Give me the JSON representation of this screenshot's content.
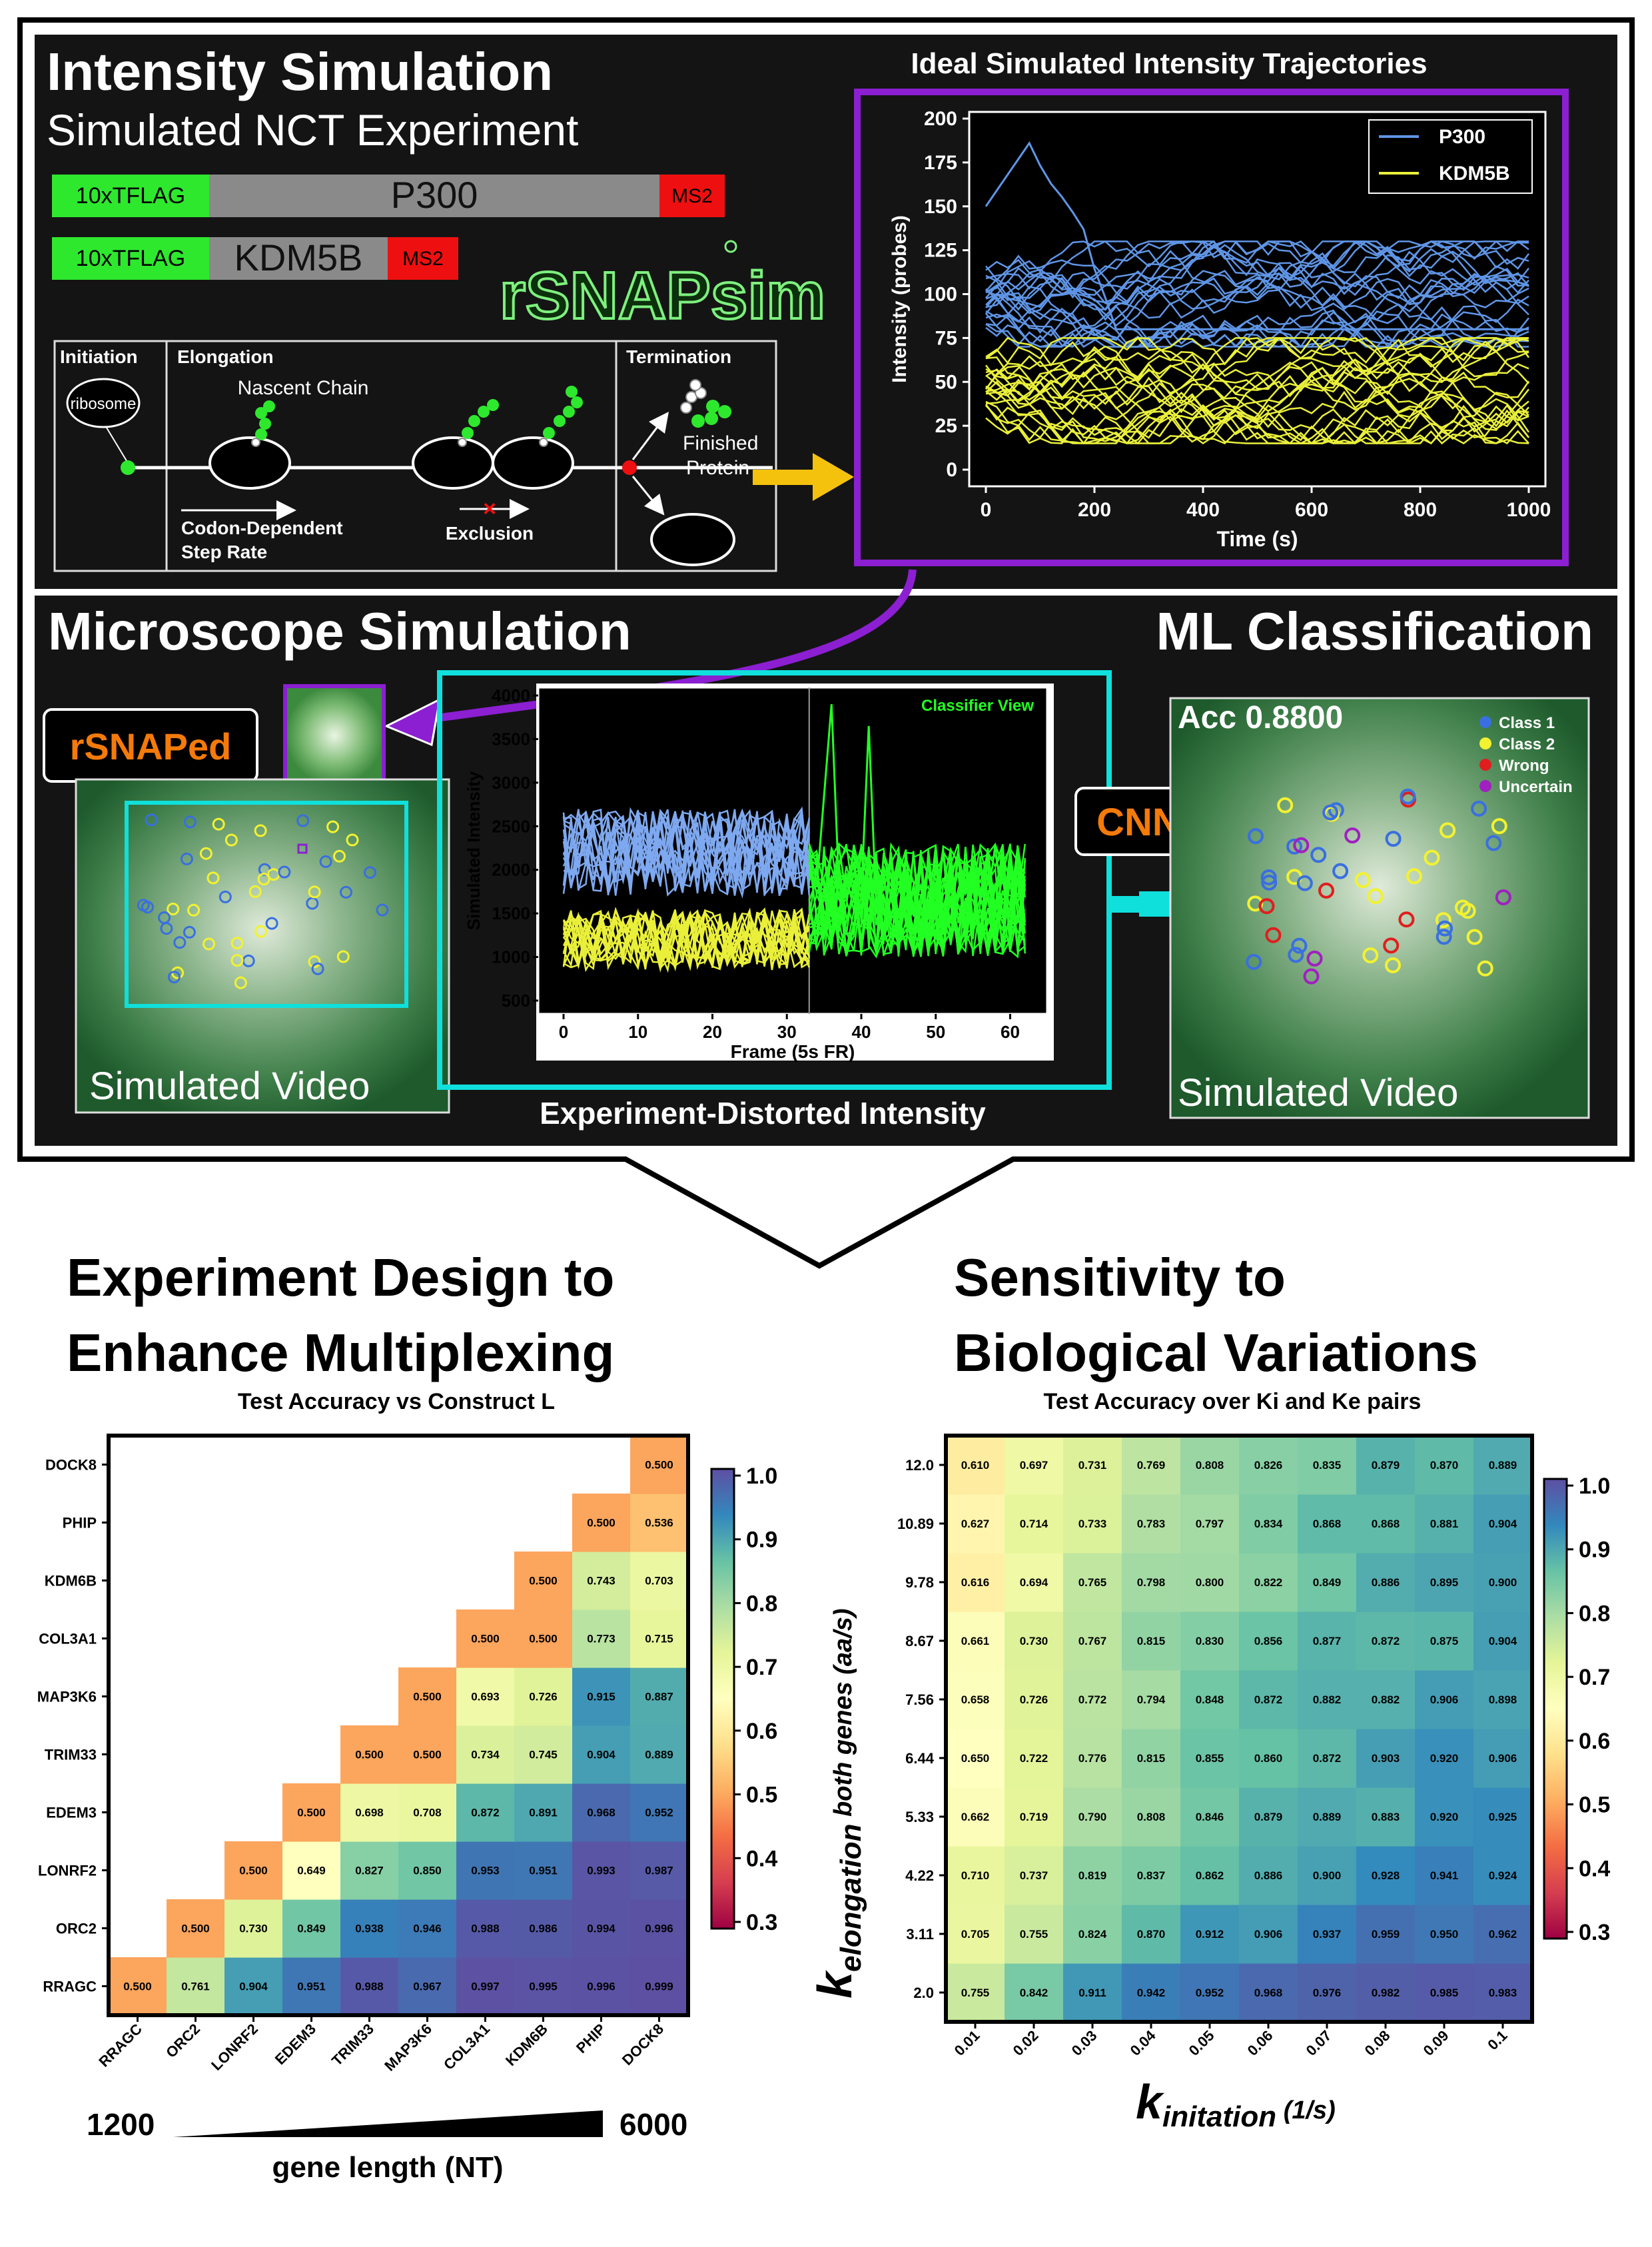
{
  "top_panel": {
    "title": "Intensity Simulation",
    "subtitle": "Simulated NCT Experiment",
    "constructs": [
      {
        "tag": "10xTFLAG",
        "gene": "P300",
        "reporter": "MS2"
      },
      {
        "tag": "10xTFLAG",
        "gene": "KDM5B",
        "reporter": "MS2"
      }
    ],
    "logo_text": "rSNAPsim",
    "diagram": {
      "initiation": "Initiation",
      "ribosome": "ribosome",
      "elongation": "Elongation",
      "nascent_chain": "Nascent Chain",
      "step_rate_1": "Codon-Dependent",
      "step_rate_2": "Step Rate",
      "exclusion": "Exclusion",
      "termination": "Termination",
      "finished_1": "Finished",
      "finished_2": "Protein"
    },
    "trajectory_plot": {
      "title": "Ideal Simulated Intensity Trajectories",
      "xlabel": "Time (s)",
      "ylabel": "Intensity (probes)",
      "xticks": [
        "0",
        "200",
        "400",
        "600",
        "800",
        "1000"
      ],
      "yticks": [
        "0",
        "25",
        "50",
        "75",
        "100",
        "125",
        "150",
        "175",
        "200"
      ],
      "legend": [
        "P300",
        "KDM5B"
      ]
    }
  },
  "mid_panel": {
    "title_left": "Microscope Simulation",
    "title_right": "ML Classification",
    "rsnaped": "rSNAPed",
    "video_label_left": "Simulated Video",
    "video_label_right": "Simulated Video",
    "distorted_label": "Experiment-Distorted Intensity",
    "cnn": "CNN",
    "accuracy": "Acc 0.8800",
    "class_legend": [
      "Class 1",
      "Class 2",
      "Wrong",
      "Uncertain"
    ],
    "intensity_plot": {
      "classifier_view": "Classifier View",
      "xlabel": "Frame (5s FR)",
      "ylabel": "Simulated Intensity",
      "xticks": [
        "0",
        "10",
        "20",
        "30",
        "40",
        "50",
        "60"
      ],
      "yticks": [
        "500",
        "1000",
        "1500",
        "2000",
        "2500",
        "3000",
        "3500",
        "4000"
      ]
    }
  },
  "bottom_left": {
    "heading_1": "Experiment Design to",
    "heading_2": "Enhance Multiplexing",
    "plot_title": "Test Accuracy vs Construct L",
    "genes": [
      "RRAGC",
      "ORC2",
      "LONRF2",
      "EDEM3",
      "TRIM33",
      "MAP3K6",
      "COL3A1",
      "KDM6B",
      "PHIP",
      "DOCK8"
    ],
    "gene_length_min": "1200",
    "gene_length_max": "6000",
    "gene_length_label": "gene length (NT)",
    "colorbar_ticks": [
      "1.0",
      "0.9",
      "0.8",
      "0.7",
      "0.6",
      "0.5",
      "0.4",
      "0.3"
    ]
  },
  "bottom_right": {
    "heading_1": "Sensitivity to",
    "heading_2": "Biological Variations",
    "plot_title": "Test Accuracy over Ki and Ke pairs",
    "ylabel_main": "k",
    "ylabel_sub": "elongation",
    "ylabel_unit": " both genes (aa/s)",
    "xlabel_main": "k",
    "xlabel_sub": "initation",
    "xlabel_unit": " (1/s)",
    "colorbar_ticks": [
      "1.0",
      "0.9",
      "0.8",
      "0.7",
      "0.6",
      "0.5",
      "0.4",
      "0.3"
    ]
  },
  "chart_data": [
    {
      "type": "heatmap",
      "title": "Test Accuracy vs Construct L",
      "x_categories": [
        "RRAGC",
        "ORC2",
        "LONRF2",
        "EDEM3",
        "TRIM33",
        "MAP3K6",
        "COL3A1",
        "KDM6B",
        "PHIP",
        "DOCK8"
      ],
      "y_categories_bottom_to_top": [
        "RRAGC",
        "ORC2",
        "LONRF2",
        "EDEM3",
        "TRIM33",
        "MAP3K6",
        "COL3A1",
        "KDM6B",
        "PHIP",
        "DOCK8"
      ],
      "values_bottom_to_top": [
        [
          0.5,
          0.761,
          0.904,
          0.951,
          0.988,
          0.967,
          0.997,
          0.995,
          0.996,
          0.999
        ],
        [
          null,
          0.5,
          0.73,
          0.849,
          0.938,
          0.946,
          0.988,
          0.986,
          0.994,
          0.996
        ],
        [
          null,
          null,
          0.5,
          0.649,
          0.827,
          0.85,
          0.953,
          0.951,
          0.993,
          0.987
        ],
        [
          null,
          null,
          null,
          0.5,
          0.698,
          0.708,
          0.872,
          0.891,
          0.968,
          0.952
        ],
        [
          null,
          null,
          null,
          null,
          0.5,
          0.5,
          0.734,
          0.745,
          0.904,
          0.889
        ],
        [
          null,
          null,
          null,
          null,
          null,
          0.5,
          0.693,
          0.726,
          0.915,
          0.887
        ],
        [
          null,
          null,
          null,
          null,
          null,
          null,
          0.5,
          0.5,
          0.773,
          0.715
        ],
        [
          null,
          null,
          null,
          null,
          null,
          null,
          null,
          0.5,
          0.743,
          0.703
        ],
        [
          null,
          null,
          null,
          null,
          null,
          null,
          null,
          null,
          0.5,
          0.536
        ],
        [
          null,
          null,
          null,
          null,
          null,
          null,
          null,
          null,
          null,
          0.5
        ]
      ],
      "vmin": 0.3,
      "vmax": 1.0
    },
    {
      "type": "heatmap",
      "title": "Test Accuracy over Ki and Ke pairs",
      "x_categories": [
        "0.01",
        "0.02",
        "0.03",
        "0.04",
        "0.05",
        "0.06",
        "0.07",
        "0.08",
        "0.09",
        "0.1"
      ],
      "y_categories_bottom_to_top": [
        "2.0",
        "3.11",
        "4.22",
        "5.33",
        "6.44",
        "7.56",
        "8.67",
        "9.78",
        "10.89",
        "12.0"
      ],
      "values_bottom_to_top": [
        [
          0.755,
          0.842,
          0.911,
          0.942,
          0.952,
          0.968,
          0.976,
          0.982,
          0.985,
          0.983
        ],
        [
          0.705,
          0.755,
          0.824,
          0.87,
          0.912,
          0.906,
          0.937,
          0.959,
          0.95,
          0.962
        ],
        [
          0.71,
          0.737,
          0.819,
          0.837,
          0.862,
          0.886,
          0.9,
          0.928,
          0.941,
          0.924
        ],
        [
          0.662,
          0.719,
          0.79,
          0.808,
          0.846,
          0.879,
          0.889,
          0.883,
          0.92,
          0.925
        ],
        [
          0.65,
          0.722,
          0.776,
          0.815,
          0.855,
          0.86,
          0.872,
          0.903,
          0.92,
          0.906
        ],
        [
          0.658,
          0.726,
          0.772,
          0.794,
          0.848,
          0.872,
          0.882,
          0.882,
          0.906,
          0.898
        ],
        [
          0.661,
          0.73,
          0.767,
          0.815,
          0.83,
          0.856,
          0.877,
          0.872,
          0.875,
          0.904
        ],
        [
          0.616,
          0.694,
          0.765,
          0.798,
          0.8,
          0.822,
          0.849,
          0.886,
          0.895,
          0.9
        ],
        [
          0.627,
          0.714,
          0.733,
          0.783,
          0.797,
          0.834,
          0.868,
          0.868,
          0.881,
          0.904
        ],
        [
          0.61,
          0.697,
          0.731,
          0.769,
          0.808,
          0.826,
          0.835,
          0.879,
          0.87,
          0.889
        ]
      ],
      "vmin": 0.3,
      "vmax": 1.0
    }
  ]
}
